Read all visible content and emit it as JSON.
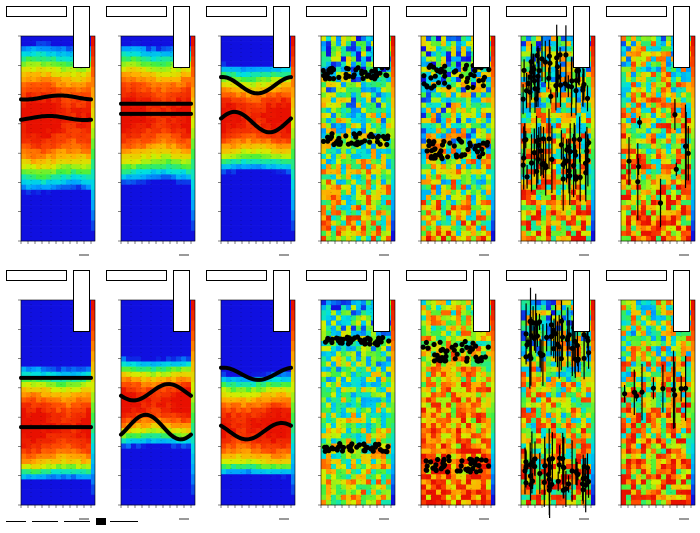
{
  "chart_data": {
    "type": "heatmap",
    "layout": {
      "rows": 2,
      "columns": 7
    },
    "colorscale": [
      "#1010e0",
      "#00a0ff",
      "#00e0e0",
      "#40f040",
      "#d0f000",
      "#ffb000",
      "#ff5000",
      "#e81000"
    ],
    "marker_color": "#000000",
    "panels": [
      {
        "row": 0,
        "col": 0,
        "kind": "smooth",
        "hot_center": 0.4,
        "hot_width": 0.3,
        "cool_bottom": true,
        "cool_top": false,
        "noise": 0.04,
        "markers": "line",
        "tracks": [
          {
            "level": 0.3,
            "amp": 0.01
          },
          {
            "level": 0.4,
            "amp": 0.01
          }
        ]
      },
      {
        "row": 0,
        "col": 1,
        "kind": "smooth",
        "hot_center": 0.38,
        "hot_width": 0.28,
        "cool_bottom": true,
        "cool_top": false,
        "noise": 0.04,
        "markers": "line",
        "tracks": [
          {
            "level": 0.33,
            "amp": 0.0
          },
          {
            "level": 0.38,
            "amp": 0.0
          }
        ]
      },
      {
        "row": 0,
        "col": 2,
        "kind": "smooth",
        "hot_center": 0.4,
        "hot_width": 0.22,
        "cool_bottom": true,
        "cool_top": true,
        "noise": 0.04,
        "markers": "line",
        "tracks": [
          {
            "level": 0.24,
            "amp": 0.04
          },
          {
            "level": 0.42,
            "amp": 0.05
          }
        ]
      },
      {
        "row": 0,
        "col": 3,
        "kind": "noisy",
        "base_level": 0.45,
        "noise": 0.35,
        "markers": "scatter",
        "tracks": [
          {
            "level": 0.18,
            "amp": 0.03
          },
          {
            "level": 0.5,
            "amp": 0.03
          }
        ]
      },
      {
        "row": 0,
        "col": 4,
        "kind": "noisy",
        "base_level": 0.45,
        "noise": 0.4,
        "markers": "scatter",
        "tracks": [
          {
            "level": 0.2,
            "amp": 0.06
          },
          {
            "level": 0.55,
            "amp": 0.05
          }
        ]
      },
      {
        "row": 0,
        "col": 5,
        "kind": "noisy",
        "base_level": 0.55,
        "noise": 0.4,
        "markers": "errorbars",
        "tracks": [
          {
            "level": 0.2,
            "amp": 0.12
          },
          {
            "level": 0.6,
            "amp": 0.1
          }
        ]
      },
      {
        "row": 0,
        "col": 6,
        "kind": "noisy",
        "base_level": 0.62,
        "noise": 0.4,
        "markers": "sparse",
        "tracks": [
          {
            "level": 0.6,
            "amp": 0.25
          }
        ]
      },
      {
        "row": 1,
        "col": 0,
        "kind": "smooth",
        "hot_center": 0.62,
        "hot_width": 0.25,
        "cool_bottom": true,
        "cool_top": true,
        "noise": 0.04,
        "markers": "line",
        "tracks": [
          {
            "level": 0.38,
            "amp": 0.0
          },
          {
            "level": 0.62,
            "amp": 0.0
          }
        ]
      },
      {
        "row": 1,
        "col": 1,
        "kind": "smooth",
        "hot_center": 0.5,
        "hot_width": 0.18,
        "cool_bottom": true,
        "cool_top": true,
        "noise": 0.04,
        "markers": "line",
        "tracks": [
          {
            "level": 0.45,
            "amp": 0.04
          },
          {
            "level": 0.62,
            "amp": 0.06
          }
        ]
      },
      {
        "row": 1,
        "col": 2,
        "kind": "smooth",
        "hot_center": 0.62,
        "hot_width": 0.22,
        "cool_bottom": true,
        "cool_top": true,
        "noise": 0.04,
        "markers": "line",
        "tracks": [
          {
            "level": 0.36,
            "amp": 0.03
          },
          {
            "level": 0.64,
            "amp": 0.04
          }
        ]
      },
      {
        "row": 1,
        "col": 3,
        "kind": "noisy",
        "base_level": 0.45,
        "noise": 0.3,
        "markers": "scatter",
        "tracks": [
          {
            "level": 0.2,
            "amp": 0.02
          },
          {
            "level": 0.72,
            "amp": 0.02
          }
        ]
      },
      {
        "row": 1,
        "col": 4,
        "kind": "noisy",
        "base_level": 0.7,
        "noise": 0.3,
        "markers": "scatter",
        "tracks": [
          {
            "level": 0.25,
            "amp": 0.05
          },
          {
            "level": 0.8,
            "amp": 0.04
          }
        ]
      },
      {
        "row": 1,
        "col": 5,
        "kind": "noisy",
        "base_level": 0.55,
        "noise": 0.4,
        "markers": "errorbars",
        "tracks": [
          {
            "level": 0.2,
            "amp": 0.1
          },
          {
            "level": 0.85,
            "amp": 0.08
          }
        ]
      },
      {
        "row": 1,
        "col": 6,
        "kind": "noisy",
        "base_level": 0.62,
        "noise": 0.4,
        "markers": "sparse",
        "tracks": [
          {
            "level": 0.45,
            "amp": 0.02
          }
        ]
      }
    ]
  }
}
